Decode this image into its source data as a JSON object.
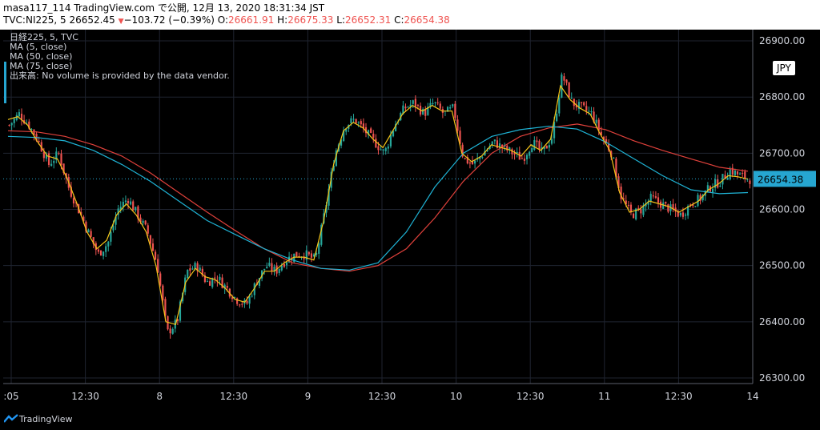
{
  "header": {
    "line1": "masa117_114 TradingView.com で公開, 12月 13, 2020 18:31:34 JST",
    "symbol": "TVC:NI225, 5",
    "last": "26652.45",
    "change": "−103.72 (−0.39%)",
    "o_label": "O:",
    "o_value": "26661.91",
    "h_label": "H:",
    "h_value": "26675.33",
    "l_label": "L:",
    "l_value": "26652.31",
    "c_label": "C:",
    "c_value": "26654.38"
  },
  "indicators": [
    "日経225, 5, TVC",
    "MA (5, close)",
    "MA (50, close)",
    "MA (75, close)",
    "出来高: No volume is provided by the data vendor."
  ],
  "currency_badge": "JPY",
  "price_badge": "26654.38",
  "footer": {
    "brand": "TradingView"
  },
  "colors": {
    "up": "#26a69a",
    "down": "#ef5350",
    "ma5": "#f5c518",
    "ma50": "#1fb4d6",
    "ma75": "#e0413b",
    "badge": "#26a6d1"
  },
  "chart_data": {
    "type": "candlestick",
    "x_tick_labels": [
      ":05",
      "12:30",
      "8",
      "12:30",
      "9",
      "12:30",
      "10",
      "12:30",
      "11",
      "12:30",
      "14"
    ],
    "y_tick_labels": [
      "26300.00",
      "26400.00",
      "26500.00",
      "26600.00",
      "26700.00",
      "26800.00",
      "26900.00"
    ],
    "ylim": [
      26290,
      26920
    ],
    "current_price": 26654.38,
    "close_path": [
      26750,
      26770,
      26750,
      26720,
      26680,
      26700,
      26640,
      26600,
      26560,
      26520,
      26540,
      26600,
      26620,
      26590,
      26560,
      26500,
      26380,
      26400,
      26490,
      26500,
      26470,
      26480,
      26460,
      26440,
      26430,
      26470,
      26500,
      26490,
      26510,
      26520,
      26520,
      26510,
      26600,
      26700,
      26750,
      26760,
      26740,
      26720,
      26700,
      26750,
      26780,
      26790,
      26770,
      26790,
      26770,
      26780,
      26690,
      26680,
      26700,
      26720,
      26710,
      26700,
      26690,
      26720,
      26700,
      26730,
      26840,
      26790,
      26780,
      26770,
      26730,
      26700,
      26620,
      26590,
      26600,
      26620,
      26610,
      26600,
      26590,
      26610,
      26620,
      26640,
      26650,
      26670,
      26660,
      26654
    ],
    "ma5_path": [
      26760,
      26765,
      26750,
      26720,
      26695,
      26690,
      26655,
      26610,
      26560,
      26530,
      26545,
      26590,
      26610,
      26590,
      26560,
      26500,
      26400,
      26395,
      26470,
      26495,
      26480,
      26475,
      26460,
      26440,
      26435,
      26460,
      26490,
      26490,
      26505,
      26515,
      26515,
      26510,
      26580,
      26680,
      26740,
      26755,
      26745,
      26725,
      26710,
      26740,
      26770,
      26785,
      26775,
      26785,
      26775,
      26775,
      26700,
      26685,
      26695,
      26715,
      26710,
      26705,
      26695,
      26715,
      26705,
      26725,
      26820,
      26795,
      26780,
      26770,
      26735,
      26705,
      26630,
      26595,
      26600,
      26615,
      26610,
      26605,
      26595,
      26605,
      26615,
      26635,
      26645,
      26660,
      26658,
      26654
    ],
    "ma50_path": [
      26730,
      26728,
      26722,
      26705,
      26680,
      26650,
      26615,
      26580,
      26555,
      26530,
      26510,
      26495,
      26492,
      26505,
      26560,
      26640,
      26700,
      26730,
      26742,
      26748,
      26743,
      26720,
      26690,
      26660,
      26635,
      26628,
      26630
    ],
    "ma75_path": [
      26740,
      26738,
      26730,
      26715,
      26695,
      26665,
      26630,
      26595,
      26562,
      26530,
      26505,
      26495,
      26490,
      26500,
      26530,
      26585,
      26650,
      26700,
      26730,
      26745,
      26752,
      26742,
      26722,
      26705,
      26690,
      26675,
      26668
    ]
  }
}
